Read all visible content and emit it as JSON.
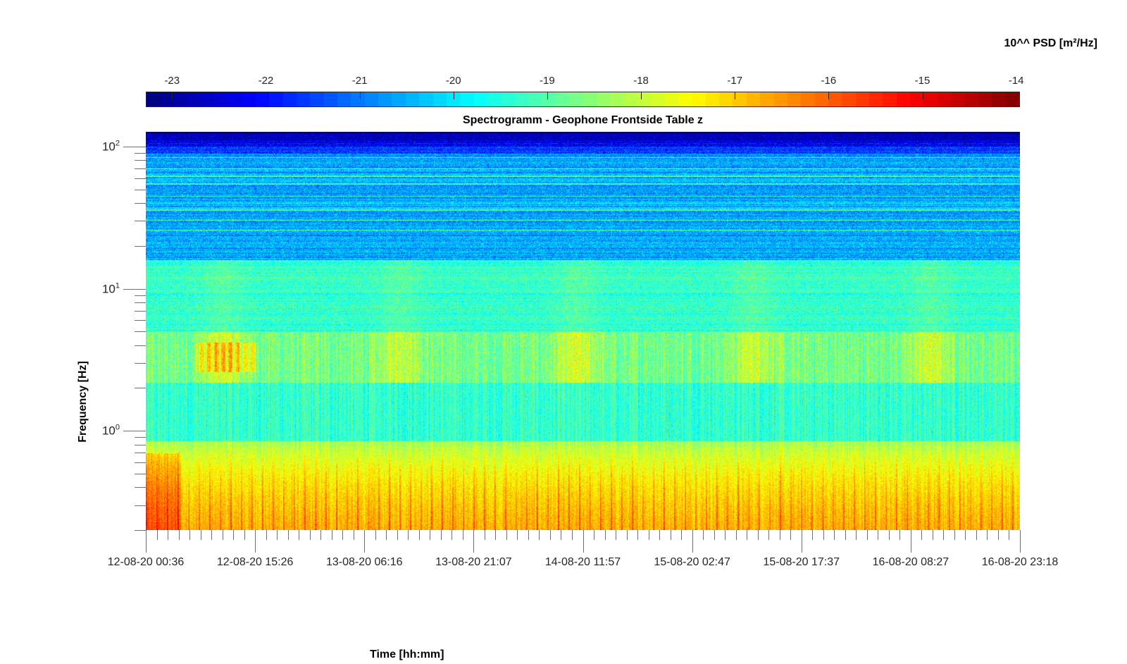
{
  "chart_data": {
    "type": "heatmap",
    "title": "Spectrogramm - Geophone Frontside Table z",
    "xlabel": "Time [hh:mm]",
    "ylabel": "Frequency [Hz]",
    "yscale": "log",
    "ylim": [
      0.2,
      127
    ],
    "y_ticks": [
      {
        "value": 100,
        "base": "10",
        "exp": "2"
      },
      {
        "value": 10,
        "base": "10",
        "exp": "1"
      },
      {
        "value": 1,
        "base": "10",
        "exp": "0"
      }
    ],
    "x_tick_labels": [
      "12-08-20 00:36",
      "12-08-20 15:26",
      "13-08-20 06:16",
      "13-08-20 21:07",
      "14-08-20 11:57",
      "15-08-20 02:47",
      "15-08-20 17:37",
      "16-08-20 08:27",
      "16-08-20 23:18"
    ],
    "x_range_hours": [
      0,
      118.7
    ],
    "colorbar": {
      "label": "10^^ PSD [m²/Hz]",
      "colormap": "jet",
      "clim": [
        -23.28,
        -13.96
      ],
      "ticks": [
        "-23",
        "-22",
        "-21",
        "-20",
        "-19",
        "-18",
        "-17",
        "-16",
        "-15",
        "-14"
      ]
    },
    "features": {
      "high_band_floor_log10_psd": -20.5,
      "mid_band_log10_psd": -19,
      "burst_band_hz": [
        2.5,
        4.5
      ],
      "low_band_log10_psd": -17.8
    }
  }
}
